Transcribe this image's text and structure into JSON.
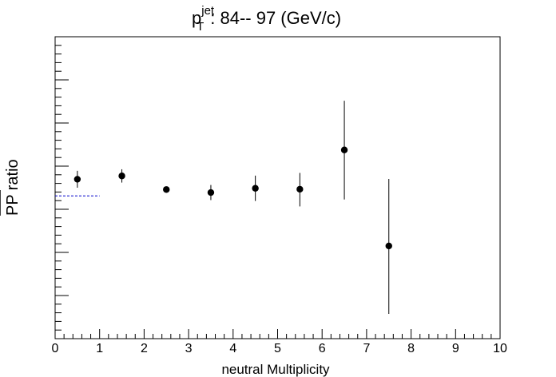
{
  "chart_data": {
    "type": "scatter",
    "title": {
      "main": "p",
      "sup": "jet",
      "sub": "T",
      "rest": ":  84-- 97 (GeV/c)"
    },
    "xlabel": "neutral Multiplicity",
    "ylabel": {
      "fraction": "PP",
      "word": "ratio"
    },
    "xlim": [
      0,
      10
    ],
    "x_ticks": [
      "0",
      "1",
      "2",
      "3",
      "4",
      "5",
      "6",
      "7",
      "8",
      "9",
      "10"
    ],
    "ylim": [
      0,
      1
    ],
    "y_tick_labels_shown": false,
    "grid": false,
    "reference_line": {
      "value": 0.473,
      "x_from": 0,
      "x_to": 1,
      "style": "dashed",
      "color": "#0000cc"
    },
    "series": [
      {
        "points": [
          {
            "x": 0.5,
            "y": 0.528,
            "err_low": 0.028,
            "err_high": 0.028
          },
          {
            "x": 1.5,
            "y": 0.539,
            "err_low": 0.022,
            "err_high": 0.022
          },
          {
            "x": 2.5,
            "y": 0.494,
            "err_low": 0.01,
            "err_high": 0.01
          },
          {
            "x": 3.5,
            "y": 0.484,
            "err_low": 0.025,
            "err_high": 0.025
          },
          {
            "x": 4.5,
            "y": 0.498,
            "err_low": 0.042,
            "err_high": 0.042
          },
          {
            "x": 5.5,
            "y": 0.495,
            "err_low": 0.057,
            "err_high": 0.054
          },
          {
            "x": 6.5,
            "y": 0.625,
            "err_low": 0.164,
            "err_high": 0.163
          },
          {
            "x": 7.5,
            "y": 0.307,
            "err_low": 0.225,
            "err_high": 0.222
          }
        ],
        "color": "#000000"
      }
    ]
  }
}
